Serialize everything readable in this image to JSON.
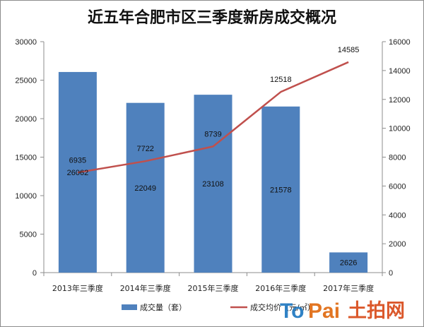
{
  "chart_data": {
    "type": "bar",
    "title": "近五年合肥市区三季度新房成交概况",
    "categories": [
      "2013年三季度",
      "2014年三季度",
      "2015年三季度",
      "2016年三季度",
      "2017年三季度"
    ],
    "series": [
      {
        "name": "成交量（套）",
        "type": "bar",
        "axis": "left",
        "values": [
          26062,
          22049,
          23108,
          21578,
          2626
        ]
      },
      {
        "name": "成交均价（元/㎡）",
        "type": "line",
        "axis": "right",
        "values": [
          6935,
          7722,
          8739,
          12518,
          14585
        ]
      }
    ],
    "ylim_left": [
      0,
      30000
    ],
    "yticks_left": [
      0,
      5000,
      10000,
      15000,
      20000,
      25000,
      30000
    ],
    "ylim_right": [
      0,
      16000
    ],
    "yticks_right": [
      0,
      2000,
      4000,
      6000,
      8000,
      10000,
      12000,
      14000,
      16000
    ],
    "grid": false,
    "legend_position": "bottom",
    "colors": {
      "bar": "#4f81bd",
      "line": "#c0504d"
    }
  },
  "watermark": {
    "part_a": "To",
    "part_b": "Pai",
    "part_c": "土拍网"
  }
}
